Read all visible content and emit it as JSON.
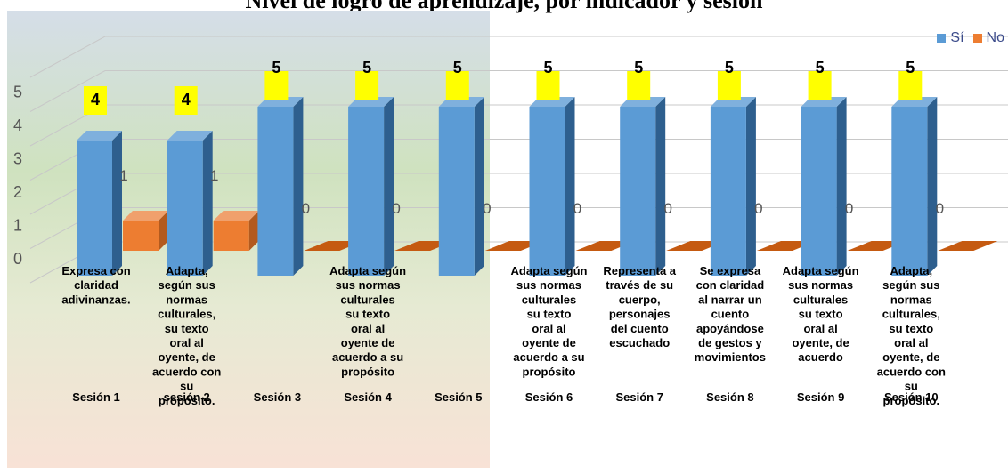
{
  "chart_data": {
    "type": "bar",
    "title": "Nivel de logro de aprendizaje, por indicador y sesión",
    "categories": [
      "Sesión 1",
      "sesión 2",
      "Sesión 3",
      "Sesión 4",
      "Sesión 5",
      "Sesión 6",
      "Sesión 7",
      "Sesión 8",
      "Sesión 9",
      "Sesión 10"
    ],
    "indicators": [
      "Expresa con claridad adivinanzas.",
      "Adapta, según sus normas culturales, su texto oral al oyente, de acuerdo con su propósito.",
      "",
      "Adapta según sus normas culturales su texto oral al oyente de acuerdo  a su propósito",
      "",
      "Adapta según sus normas culturales su texto oral al oyente de acuerdo  a su propósito",
      "Representa a través de su cuerpo, personajes del cuento escuchado",
      "Se expresa con claridad al narrar un cuento apoyándose de gestos y movimientos",
      "Adapta según sus normas culturales su texto oral al oyente, de acuerdo",
      "Adapta, según sus normas culturales, su texto oral al oyente, de acuerdo con su propósito."
    ],
    "series": [
      {
        "name": "Sí",
        "values": [
          4,
          4,
          5,
          5,
          5,
          5,
          5,
          5,
          5,
          5
        ],
        "color": "#5b9bd5"
      },
      {
        "name": "No",
        "values": [
          1,
          1,
          0,
          0,
          0,
          0,
          0,
          0,
          0,
          0
        ],
        "color": "#ed7d31"
      }
    ],
    "ylim": [
      0,
      5
    ],
    "yticks": [
      "0",
      "1",
      "2",
      "3",
      "4",
      "5"
    ],
    "data_labels_si": [
      "4",
      "4",
      "5",
      "5",
      "5",
      "5",
      "5",
      "5",
      "5",
      "5"
    ],
    "data_labels_no": [
      "1",
      "1",
      "0",
      "0",
      "0",
      "0",
      "0",
      "0",
      "0",
      "0"
    ],
    "label_box_color": "#ffff00",
    "legend_position": "top-right",
    "grid": true
  }
}
